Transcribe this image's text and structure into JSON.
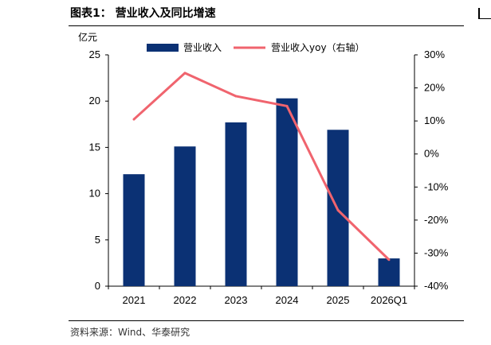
{
  "header": {
    "title": "图表1：  营业收入及同比增速"
  },
  "footer": {
    "source": "资料来源：Wind、华泰研究"
  },
  "colors": {
    "bar": "#0b3174",
    "line": "#f0646e"
  },
  "chart_data": {
    "type": "bar",
    "categories": [
      "2021",
      "2022",
      "2023",
      "2024",
      "2025",
      "2026Q1"
    ],
    "series": [
      {
        "name": "营业收入",
        "type": "bar",
        "axis": "left",
        "values": [
          12.1,
          15.1,
          17.7,
          20.3,
          16.9,
          3.0
        ]
      },
      {
        "name": "营业收入yoy（右轴）",
        "type": "line",
        "axis": "right",
        "values": [
          10.5,
          24.5,
          17.5,
          14.5,
          -17.0,
          -32.0
        ]
      }
    ],
    "ylabel": "亿元",
    "ylim": [
      0,
      25
    ],
    "y_ticks": [
      "0",
      "5",
      "10",
      "15",
      "20",
      "25"
    ],
    "y2lim": [
      -40,
      30
    ],
    "y2_ticks": [
      "-40%",
      "-30%",
      "-20%",
      "-10%",
      "0%",
      "10%",
      "20%",
      "30%"
    ],
    "grid": false,
    "legend_position": "top"
  }
}
